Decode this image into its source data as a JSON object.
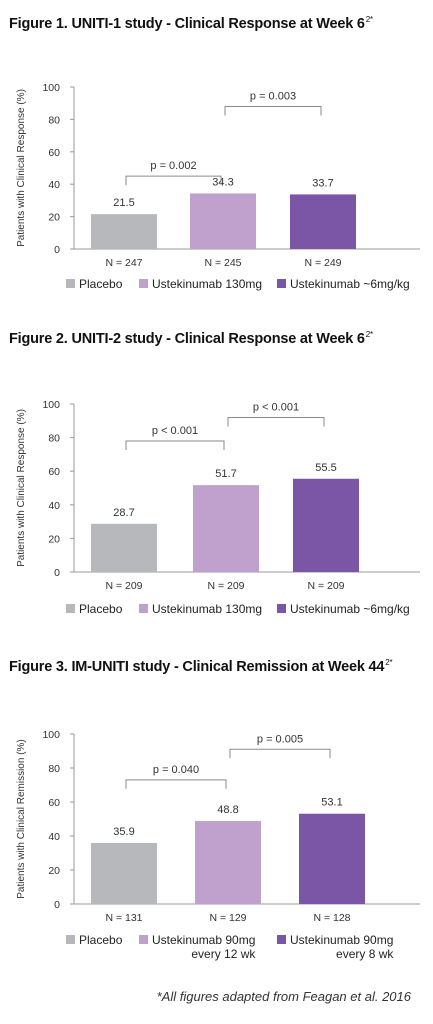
{
  "footnote": "*All figures adapted from Feagan et al. 2016",
  "chart_data": [
    {
      "type": "bar",
      "title": "Figure 1. UNITI-1 study - Clinical Response at Week 6",
      "title_sup": "2*",
      "ylabel": "Patients with Clinical Response (%)",
      "ylim": [
        0,
        100
      ],
      "yticks": [
        0,
        20,
        40,
        60,
        80,
        100
      ],
      "categories": [
        "N = 247",
        "N = 245",
        "N = 249"
      ],
      "values": [
        21.5,
        34.3,
        33.7
      ],
      "value_labels": [
        "21.5",
        "34.3",
        "33.7"
      ],
      "colors": [
        "#b6b8bb",
        "#c0a0cd",
        "#7c56a6"
      ],
      "comparisons": [
        {
          "from": 0,
          "to": 1,
          "label": "p = 0.002",
          "level": 45
        },
        {
          "from": 1,
          "to": 2,
          "label": "p = 0.003",
          "level": 88
        }
      ],
      "legend": [
        {
          "label": "Placebo",
          "color": "#b6b8bb"
        },
        {
          "label": "Ustekinumab 130mg",
          "color": "#c0a0cd"
        },
        {
          "label": "Ustekinumab ~6mg/kg",
          "color": "#7c56a6"
        }
      ]
    },
    {
      "type": "bar",
      "title": "Figure 2. UNITI-2 study - Clinical Response at Week 6",
      "title_sup": "2*",
      "ylabel": "Patients with Clinical Response (%)",
      "ylim": [
        0,
        100
      ],
      "yticks": [
        0,
        20,
        40,
        60,
        80,
        100
      ],
      "categories": [
        "N = 209",
        "N = 209",
        "N = 209"
      ],
      "values": [
        28.7,
        51.7,
        55.5
      ],
      "value_labels": [
        "28.7",
        "51.7",
        "55.5"
      ],
      "colors": [
        "#b6b8bb",
        "#c0a0cd",
        "#7c56a6"
      ],
      "comparisons": [
        {
          "from": 0,
          "to": 1,
          "label": "p < 0.001",
          "level": 78
        },
        {
          "from": 1,
          "to": 2,
          "label": "p < 0.001",
          "level": 92
        }
      ],
      "legend": [
        {
          "label": "Placebo",
          "color": "#b6b8bb"
        },
        {
          "label": "Ustekinumab 130mg",
          "color": "#c0a0cd"
        },
        {
          "label": "Ustekinumab ~6mg/kg",
          "color": "#7c56a6"
        }
      ]
    },
    {
      "type": "bar",
      "title": "Figure 3. IM-UNITI study - Clinical Remission at Week 44",
      "title_sup": "2*",
      "ylabel": "Patients with Clinical Remission (%)",
      "ylim": [
        0,
        100
      ],
      "yticks": [
        0,
        20,
        40,
        60,
        80,
        100
      ],
      "categories": [
        "N = 131",
        "N = 129",
        "N = 128"
      ],
      "values": [
        35.9,
        48.8,
        53.1
      ],
      "value_labels": [
        "35.9",
        "48.8",
        "53.1"
      ],
      "colors": [
        "#b6b8bb",
        "#c0a0cd",
        "#7c56a6"
      ],
      "comparisons": [
        {
          "from": 0,
          "to": 1,
          "label": "p = 0.040",
          "level": 73
        },
        {
          "from": 1,
          "to": 2,
          "label": "p = 0.005",
          "level": 91
        }
      ],
      "legend": [
        {
          "label": "Placebo",
          "color": "#b6b8bb"
        },
        {
          "label": "Ustekinumab 90mg\nevery 12 wk",
          "color": "#c0a0cd"
        },
        {
          "label": "Ustekinumab 90mg\nevery 8 wk",
          "color": "#7c56a6"
        }
      ]
    }
  ]
}
